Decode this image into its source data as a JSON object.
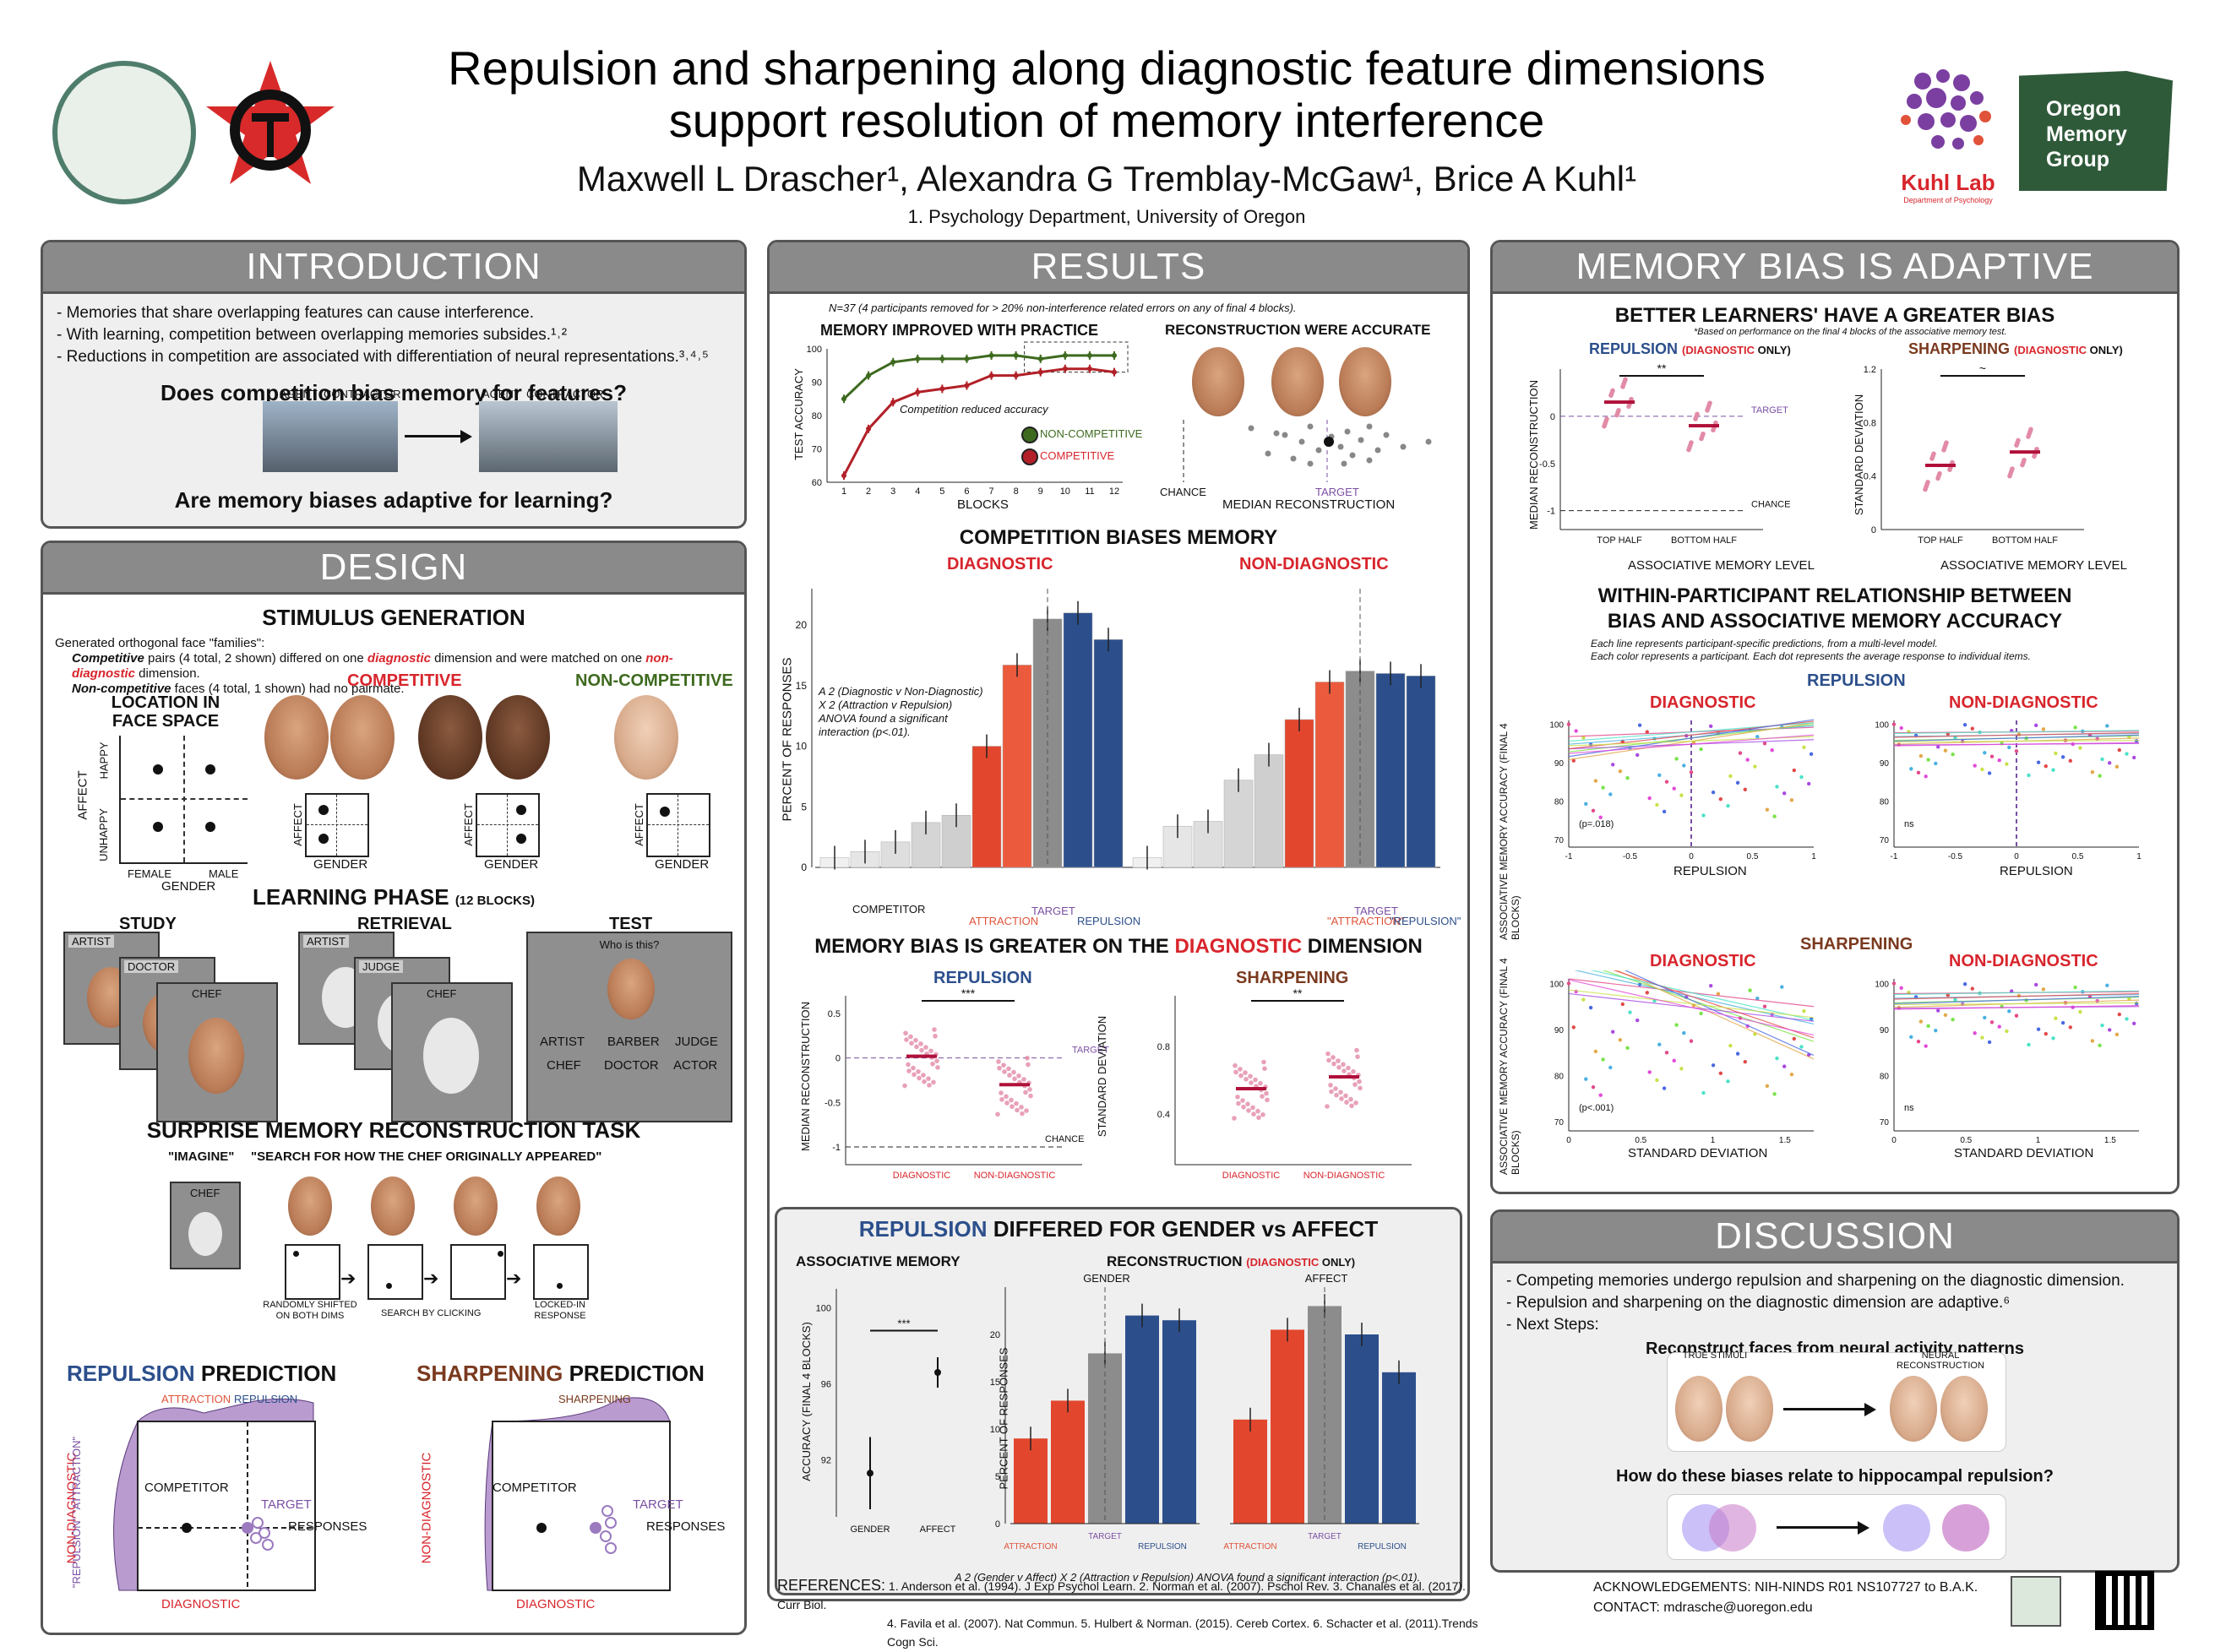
{
  "header": {
    "title_line1": "Repulsion and sharpening along diagnostic feature dimensions",
    "title_line2": "support resolution of memory interference",
    "authors": "Maxwell L Drascher¹, Alexandra G Tremblay-McGaw¹, Brice A Kuhl¹",
    "affiliation": "1. Psychology Department, University of Oregon",
    "kuhl_lab": "Kuhl Lab",
    "kuhl_lab_sub": "Department of Psychology",
    "omg_line1": "Oregon",
    "omg_line2": "Memory",
    "omg_line3": "Group"
  },
  "intro": {
    "heading": "INTRODUCTION",
    "bullets": [
      "- Memories that share overlapping features can cause interference.",
      "- With learning, competition between overlapping memories subsides.¹˒²",
      "- Reductions in competition are associated with differentiation of neural representations.³˒⁴˒⁵"
    ],
    "q1": "Does competition bias memory for features?",
    "agent": "AGENT",
    "contractor": "CONTRACTOR",
    "q2": "Are memory biases adaptive for learning?"
  },
  "design": {
    "heading": "DESIGN",
    "stim_title": "STIMULUS GENERATION",
    "stim_line1": "Generated orthogonal face \"families\":",
    "stim_line2a": "Competitive",
    "stim_line2b": " pairs (4 total, 2 shown) differed on one ",
    "stim_line2c": "diagnostic",
    "stim_line2d": " dimension and were matched on one ",
    "stim_line2e": "non-diagnostic",
    "stim_line2f": " dimension.",
    "stim_line3a": "Non-competitive",
    "stim_line3b": " faces (4 total, 1 shown) had no pairmate.",
    "loc_title": "LOCATION IN FACE SPACE",
    "affect": "AFFECT",
    "happy": "HAPPY",
    "unhappy": "UNHAPPY",
    "female": "FEMALE",
    "male": "MALE",
    "gender": "GENDER",
    "competitive": "COMPETITIVE",
    "noncompetitive": "NON-COMPETITIVE",
    "learning_title": "LEARNING PHASE",
    "learning_sub": "(12 BLOCKS)",
    "study": "STUDY",
    "retrieval": "RETRIEVAL",
    "test": "TEST",
    "artist": "ARTIST",
    "doctor": "DOCTOR",
    "chef": "CHEF",
    "judge": "JUDGE",
    "who": "Who is this?",
    "test_opts": [
      "ARTIST",
      "BARBER",
      "JUDGE",
      "CHEF",
      "DOCTOR",
      "ACTOR"
    ],
    "recon_title": "SURPRISE MEMORY RECONSTRUCTION TASK",
    "imagine": "\"IMAGINE\"",
    "search": "\"SEARCH FOR HOW THE CHEF ORIGINALLY APPEARED\"",
    "step1": "RANDOMLY SHIFTED ON BOTH DIMS",
    "step2": "SEARCH BY CLICKING",
    "step3": "LOCKED-IN RESPONSE",
    "rep_pred_a": "REPULSION",
    "rep_pred_b": " PREDICTION",
    "sharp_pred_a": "SHARPENING",
    "sharp_pred_b": " PREDICTION",
    "attraction": "ATTRACTION",
    "repulsion": "REPULSION",
    "sharpening": "SHARPENING",
    "competitor": "COMPETITOR",
    "target": "TARGET",
    "responses": "RESPONSES",
    "diagnostic": "DIAGNOSTIC",
    "nondiagnostic": "NON-DIAGNOSTIC",
    "rep_att_axis": "\"REPULSION\"  \"ATTRACTION\""
  },
  "results": {
    "heading": "RESULTS",
    "n_note": "N=37 (4 participants removed for > 20% non-interference related errors on any of final 4 blocks).",
    "acc_title": "MEMORY IMPROVED WITH PRACTICE",
    "acc_note": "Competition reduced accuracy",
    "acc_ylabel": "TEST ACCURACY",
    "acc_xlabel": "BLOCKS",
    "legend_nc": "NON-COMPETITIVE",
    "legend_c": "COMPETITIVE",
    "recon_title": "RECONSTRUCTION WERE ACCURATE",
    "chance": "CHANCE",
    "target": "TARGET",
    "median_recon": "MEDIAN RECONSTRUCTION",
    "comp_title": "COMPETITION BIASES MEMORY",
    "diagnostic": "DIAGNOSTIC",
    "nondiagnostic": "NON-DIAGNOSTIC",
    "pct_label": "PERCENT OF RESPONSES",
    "anova1": "A 2 (Diagnostic v Non-Diagnostic)",
    "anova2": "X 2 (Attraction v Repulsion)",
    "anova3": "ANOVA found a significant",
    "anova4": "interaction (p<.01).",
    "competitor": "COMPETITOR",
    "attraction": "ATTRACTION",
    "repulsion": "REPULSION",
    "attraction_q": "\"ATTRACTION\"",
    "repulsion_q": "\"REPULSION\"",
    "bias_title_a": "MEMORY BIAS IS GREATER ON THE ",
    "bias_title_b": "DIAGNOSTIC",
    "bias_title_c": " DIMENSION",
    "rep_label": "REPULSION",
    "sharp_label": "SHARPENING",
    "med_recon": "MEDIAN RECONSTRUCTION",
    "std_dev": "STANDARD DEVIATION",
    "sig3": "***",
    "sig2": "**",
    "gender_title_a": "REPULSION",
    "gender_title_b": " DIFFERED FOR GENDER vs AFFECT",
    "assoc_mem": "ASSOCIATIVE MEMORY",
    "recon_diag_a": "RECONSTRUCTION ",
    "recon_diag_b": "(DIAGNOSTIC",
    "recon_diag_c": " ONLY)",
    "acc_final": "ACCURACY (FINAL 4 BLOCKS)",
    "gender": "GENDER",
    "affect": "AFFECT",
    "anova_g": "A 2 (Gender v Affect) X 2 (Attraction v Repulsion) ANOVA found a significant interaction (p<.01)."
  },
  "adaptive": {
    "heading": "MEMORY BIAS IS ADAPTIVE",
    "better_title": "BETTER LEARNERS' HAVE A GREATER BIAS",
    "better_note": "*Based on performance on the final 4 blocks of the associative memory test.",
    "rep_a": "REPULSION",
    "diag_only_a": "(DIAGNOSTIC",
    "diag_only_b": " ONLY)",
    "sharp_a": "SHARPENING",
    "top_half": "TOP HALF",
    "bottom_half": "BOTTOM HALF",
    "assoc_level": "ASSOCIATIVE MEMORY LEVEL",
    "target": "TARGET",
    "chance": "CHANCE",
    "sig2": "**",
    "tilde": "~",
    "within_title1": "WITHIN-PARTICIPANT RELATIONSHIP BETWEEN",
    "within_title2": "BIAS AND ASSOCIATIVE MEMORY ACCURACY",
    "within_note1": "Each line represents participant-specific predictions, from a multi-level model.",
    "within_note2": "Each color represents a participant. Each dot represents the average response to individual items.",
    "repulsion": "REPULSION",
    "sharpening": "SHARPENING",
    "diagnostic": "DIAGNOSTIC",
    "nondiagnostic": "NON-DIAGNOSTIC",
    "ylab": "ASSOCIATIVE MEMORY ACCURACY (FINAL 4 BLOCKS)",
    "p1": "(p=.018)",
    "p2": "(p<.001)",
    "ns": "ns",
    "std_dev": "STANDARD DEVIATION"
  },
  "discussion": {
    "heading": "DISCUSSION",
    "bullets": [
      "- Competing memories undergo repulsion and sharpening on the diagnostic dimension.",
      "- Repulsion and sharpening on the diagnostic dimension are adaptive.⁶",
      "- Next Steps:"
    ],
    "recon_faces": "Reconstruct faces from neural activity patterns",
    "true_stim": "TRUE STIMULI",
    "neural_recon": "NEURAL RECONSTRUCTION",
    "hippo_q": "How do these biases relate to hippocampal repulsion?"
  },
  "footer": {
    "refs_label": "REFERENCES:",
    "refs1": "1. Anderson et al. (1994). J Exp Psychol Learn.   2. Norman et al. (2007). Pschol Rev.   3. Chanales et al. (2017). Curr Biol.",
    "refs2": "4. Favila et al. (2007). Nat Commun.   5. Hulbert & Norman. (2015). Cereb Cortex.   6. Schacter et al. (2011).Trends Cogn Sci.",
    "ack": "ACKNOWLEDGEMENTS: NIH-NINDS R01 NS107727 to B.A.K.",
    "contact": "CONTACT: mdrasche@uoregon.edu"
  },
  "chart_data": [
    {
      "type": "line",
      "title": "MEMORY IMPROVED WITH PRACTICE",
      "xlabel": "BLOCKS",
      "ylabel": "TEST ACCURACY",
      "x": [
        1,
        2,
        3,
        4,
        5,
        6,
        7,
        8,
        9,
        10,
        11,
        12
      ],
      "ylim": [
        60,
        100
      ],
      "series": [
        {
          "name": "NON-COMPETITIVE",
          "values": [
            85,
            92,
            96,
            97,
            97,
            97,
            98,
            98,
            97,
            98,
            98,
            98
          ]
        },
        {
          "name": "COMPETITIVE",
          "values": [
            62,
            76,
            84,
            87,
            88,
            89,
            92,
            92,
            93,
            94,
            94,
            93
          ]
        }
      ]
    },
    {
      "type": "bar",
      "title": "COMPETITION BIASES MEMORY",
      "ylabel": "PERCENT OF RESPONSES",
      "ylim": [
        0,
        23
      ],
      "series": [
        {
          "name": "DIAGNOSTIC",
          "values": [
            0.8,
            1.3,
            2.1,
            3.7,
            4.3,
            10.0,
            16.7,
            20.5,
            21.0,
            18.8
          ]
        },
        {
          "name": "NON-DIAGNOSTIC",
          "values": [
            0.8,
            3.4,
            3.8,
            7.2,
            9.3,
            12.2,
            15.3,
            16.2,
            16.0,
            15.8
          ]
        }
      ]
    },
    {
      "type": "bar",
      "title": "RECONSTRUCTION (DIAGNOSTIC ONLY)",
      "ylabel": "PERCENT OF RESPONSES",
      "categories": [
        "ATTRACTION",
        "",
        "TARGET",
        "REPULSION",
        ""
      ],
      "series": [
        {
          "name": "GENDER",
          "values": [
            9,
            13,
            18,
            22,
            21.5
          ]
        },
        {
          "name": "AFFECT",
          "values": [
            11,
            20.5,
            23,
            20,
            16
          ]
        }
      ]
    }
  ]
}
